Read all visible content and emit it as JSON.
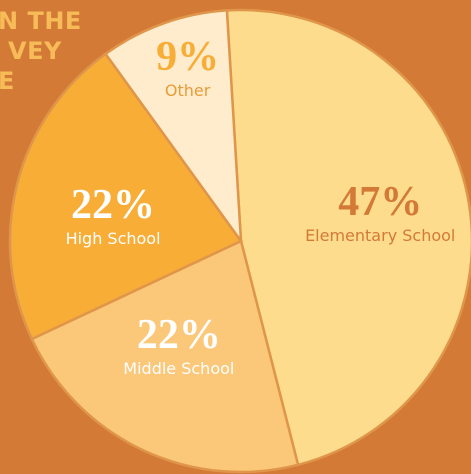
{
  "heading": {
    "lines": [
      "N THE",
      "VEY",
      "E"
    ]
  },
  "chart_data": {
    "type": "pie",
    "categories": [
      "Elementary School",
      "Middle School",
      "High School",
      "Other"
    ],
    "values": [
      47,
      22,
      22,
      9
    ],
    "value_labels": [
      "47%",
      "22%",
      "22%",
      "9%"
    ],
    "colors": [
      "#fddc8d",
      "#fbc778",
      "#f8ad37",
      "#feeccc"
    ],
    "title": "",
    "legend": "none"
  }
}
